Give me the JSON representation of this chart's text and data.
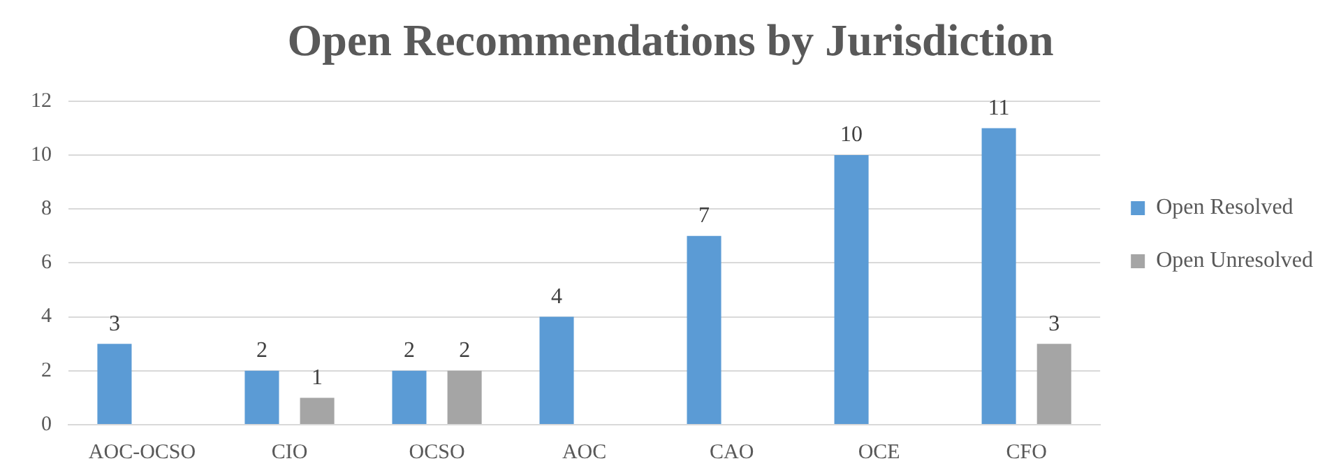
{
  "chart_data": {
    "type": "bar",
    "title": "Open Recommendations by Jurisdiction",
    "categories": [
      "AOC-OCSO",
      "CIO",
      "OCSO",
      "AOC",
      "CAO",
      "OCE",
      "CFO"
    ],
    "series": [
      {
        "name": "Open Resolved",
        "color": "#5b9bd5",
        "values": [
          3,
          2,
          2,
          4,
          7,
          10,
          11
        ]
      },
      {
        "name": "Open Unresolved",
        "color": "#a5a5a5",
        "values": [
          null,
          1,
          2,
          null,
          null,
          null,
          3
        ]
      }
    ],
    "ylim": [
      0,
      12
    ],
    "yticks": [
      0,
      2,
      4,
      6,
      8,
      10,
      12
    ],
    "grid": "y",
    "legend": "right",
    "data_labels": true
  }
}
